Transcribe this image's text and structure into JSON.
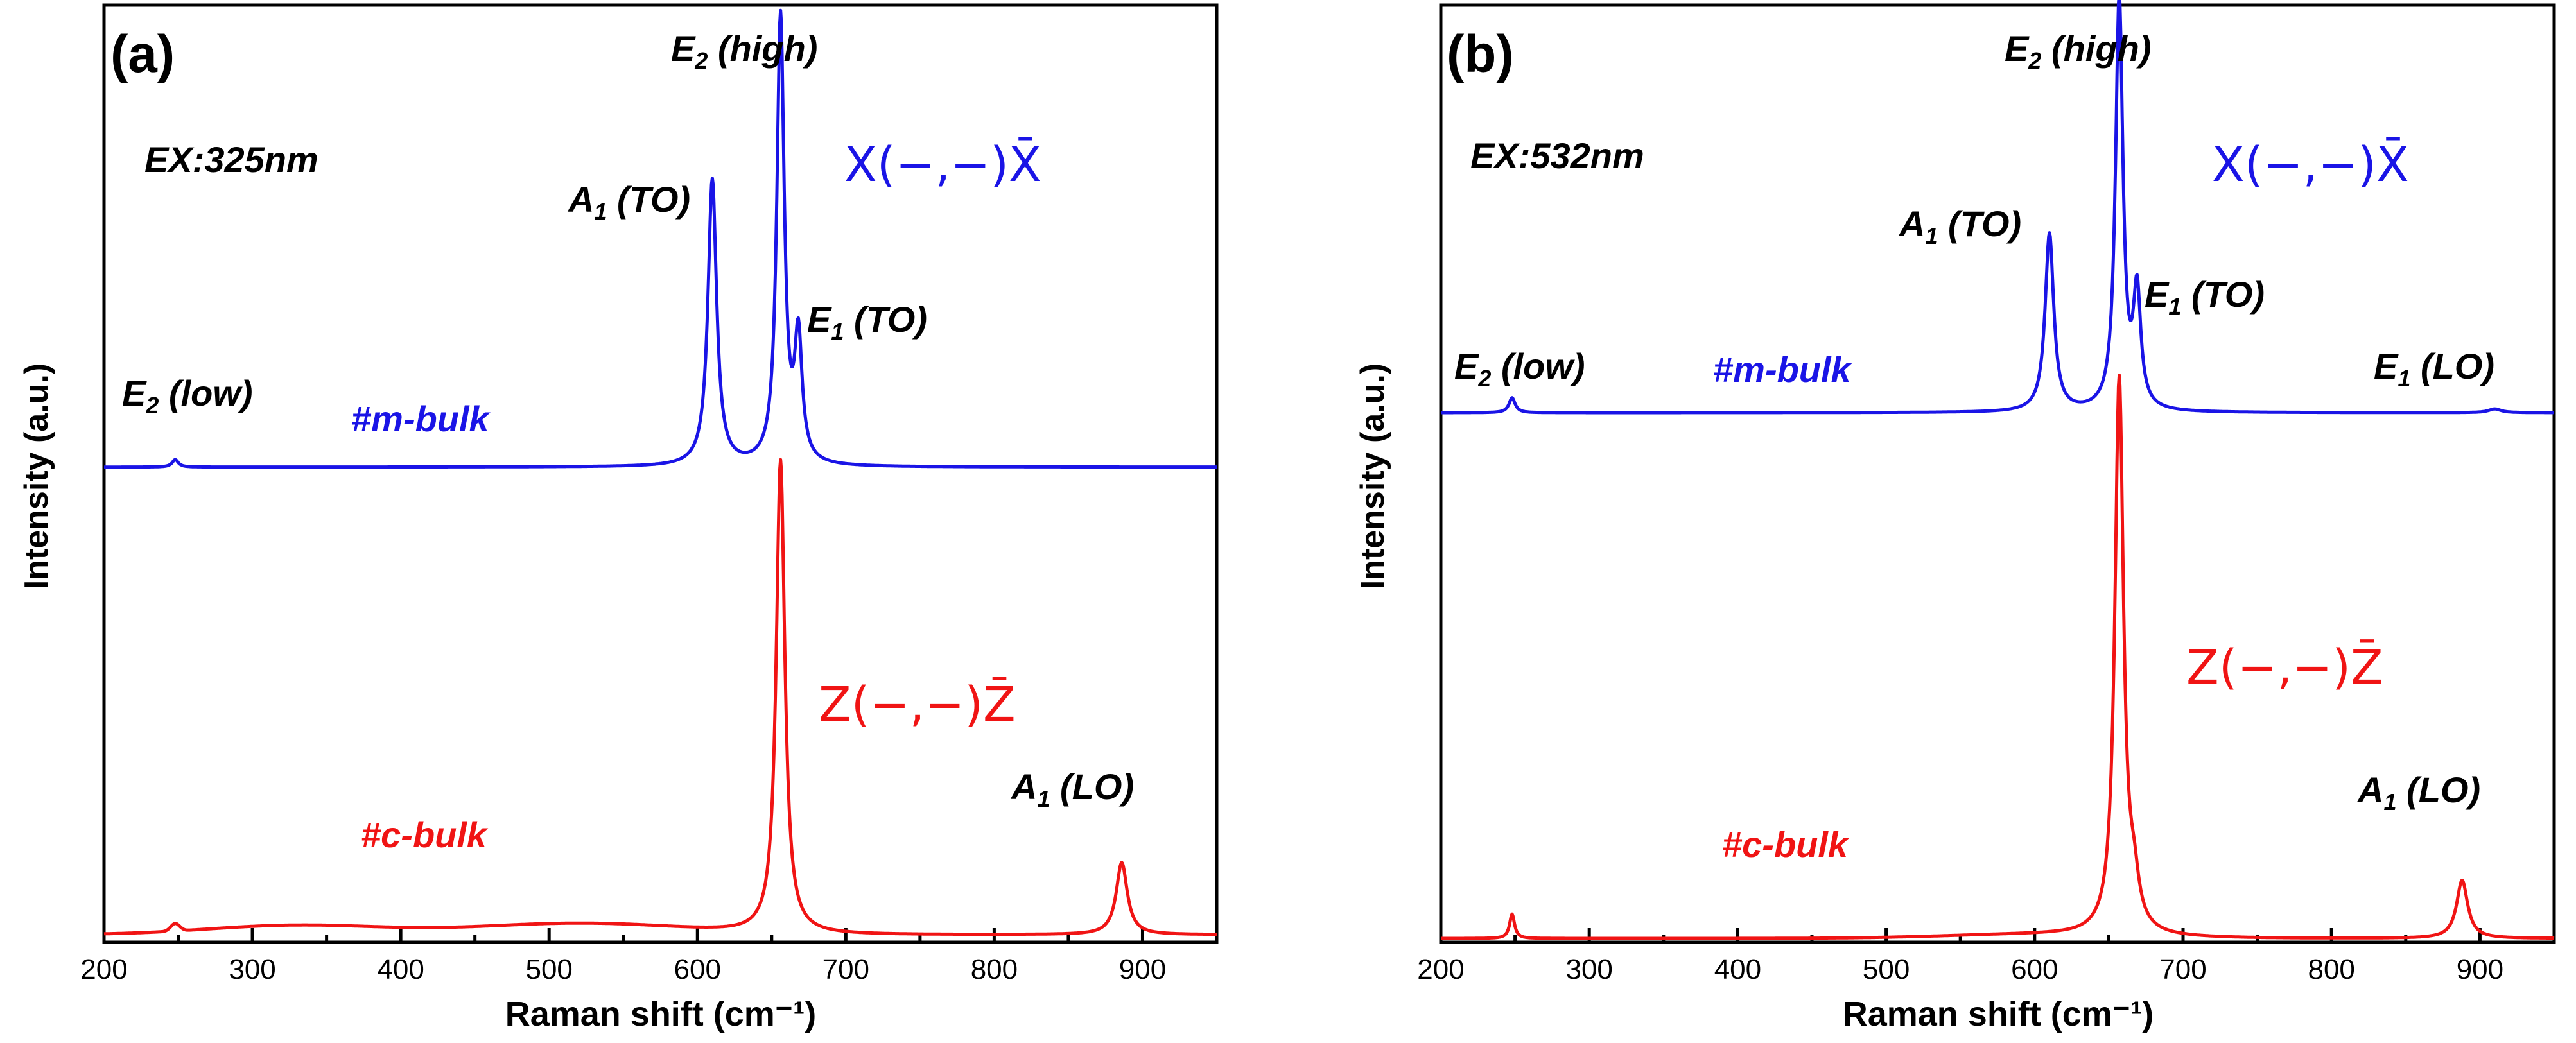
{
  "colors": {
    "m": "#1a14e6",
    "c": "#f01414",
    "axis": "#000000",
    "text": "#000000"
  },
  "chart_data": [
    {
      "type": "line",
      "panel_label": "(a)",
      "excitation": "EX:325nm",
      "xlabel": "Raman shift (cm⁻¹)",
      "ylabel": "Intensity (a.u.)",
      "xlim": [
        200,
        950
      ],
      "ylim": [
        0,
        1
      ],
      "xticks": [
        "200",
        "300",
        "400",
        "500",
        "600",
        "700",
        "800",
        "900"
      ],
      "series": [
        {
          "name": "#m-bulk",
          "color": "#1a14e6",
          "polarization": "X(−,−)X̄",
          "baseline": 0.507,
          "peaks": [
            [
              248,
              0.008,
              2.5
            ],
            [
              610,
              0.306,
              3.5
            ],
            [
              656,
              0.478,
              3.0
            ],
            [
              668,
              0.13,
              3.0
            ]
          ]
        },
        {
          "name": "#c-bulk",
          "color": "#f01414",
          "polarization": "Z(−,−)Z̄",
          "baseline": 0.008,
          "bumps": [
            [
              248,
              0.008,
              3.0
            ],
            [
              330,
              0.01,
              60
            ],
            [
              520,
              0.012,
              70
            ]
          ],
          "peaks": [
            [
              656,
              0.505,
              3.5
            ],
            [
              886,
              0.077,
              4.5
            ]
          ]
        }
      ],
      "annotations": [
        {
          "base": "E",
          "sub": "2",
          "suffix": " (low)",
          "x": 248
        },
        {
          "base": "A",
          "sub": "1",
          "suffix": " (TO)",
          "x": 610
        },
        {
          "base": "E",
          "sub": "2",
          "suffix": " (high)",
          "x": 656
        },
        {
          "base": "E",
          "sub": "1",
          "suffix": " (TO)",
          "x": 668
        },
        {
          "base": "A",
          "sub": "1",
          "suffix": " (LO)",
          "x": 886
        }
      ]
    },
    {
      "type": "line",
      "panel_label": "(b)",
      "excitation": "EX:532nm",
      "xlabel": "Raman shift (cm⁻¹)",
      "ylabel": "Intensity (a.u.)",
      "xlim": [
        200,
        950
      ],
      "ylim": [
        0,
        1
      ],
      "xticks": [
        "200",
        "300",
        "400",
        "500",
        "600",
        "700",
        "800",
        "900"
      ],
      "series": [
        {
          "name": "#m-bulk",
          "color": "#1a14e6",
          "polarization": "X(−,−)X̄",
          "baseline": 0.565,
          "peaks": [
            [
              248,
              0.016,
              2.5
            ],
            [
              610,
              0.19,
              3.5
            ],
            [
              657,
              0.44,
              3.0
            ],
            [
              669,
              0.121,
              3.0
            ],
            [
              910,
              0.004,
              5
            ]
          ]
        },
        {
          "name": "#c-bulk",
          "color": "#f01414",
          "polarization": "Z(−,−)Z̄",
          "baseline": 0.004,
          "bumps": [
            [
              600,
              0.004,
              60
            ]
          ],
          "peaks": [
            [
              248,
              0.026,
              2.0
            ],
            [
              657,
              0.593,
              3.5
            ],
            [
              667,
              0.04,
              4
            ],
            [
              888,
              0.062,
              4.5
            ]
          ]
        }
      ],
      "annotations": [
        {
          "base": "E",
          "sub": "2",
          "suffix": " (low)",
          "x": 248
        },
        {
          "base": "A",
          "sub": "1",
          "suffix": " (TO)",
          "x": 610
        },
        {
          "base": "E",
          "sub": "2",
          "suffix": " (high)",
          "x": 657
        },
        {
          "base": "E",
          "sub": "1",
          "suffix": " (TO)",
          "x": 669
        },
        {
          "base": "E",
          "sub": "1",
          "suffix": " (LO)",
          "x": 910
        },
        {
          "base": "A",
          "sub": "1",
          "suffix": " (LO)",
          "x": 888
        }
      ]
    }
  ]
}
